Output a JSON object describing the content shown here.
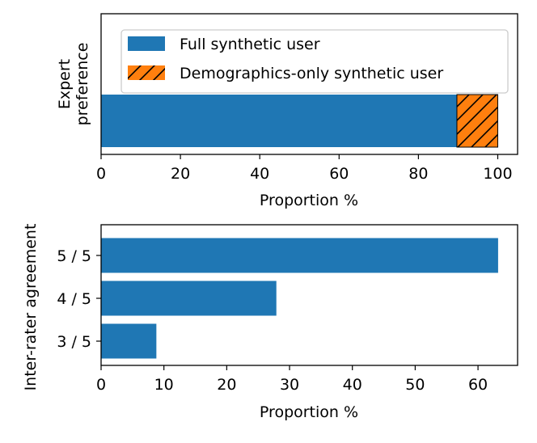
{
  "chart_data": [
    {
      "type": "bar",
      "orientation": "horizontal",
      "stacked": true,
      "ylabel": "Expert\npreference",
      "xlabel": "Proportion %",
      "xlim": [
        0,
        105
      ],
      "xticks": [
        0,
        20,
        40,
        60,
        80,
        100
      ],
      "grid": false,
      "legend_position": "top-right",
      "series": [
        {
          "name": "Full synthetic user",
          "values": [
            89.7
          ],
          "color": "#1f77b4",
          "hatch": "none"
        },
        {
          "name": "Demographics-only synthetic user",
          "values": [
            10.3
          ],
          "color": "#ff7f0e",
          "hatch": "diagonal"
        }
      ]
    },
    {
      "type": "bar",
      "orientation": "horizontal",
      "ylabel": "Inter-rater agreement",
      "xlabel": "Proportion %",
      "xlim": [
        0,
        66.3
      ],
      "xticks": [
        0,
        10,
        20,
        30,
        40,
        50,
        60
      ],
      "grid": false,
      "categories": [
        "5 / 5",
        "4 / 5",
        "3 / 5"
      ],
      "values": [
        63.2,
        27.9,
        8.8
      ],
      "color": "#1f77b4"
    }
  ]
}
